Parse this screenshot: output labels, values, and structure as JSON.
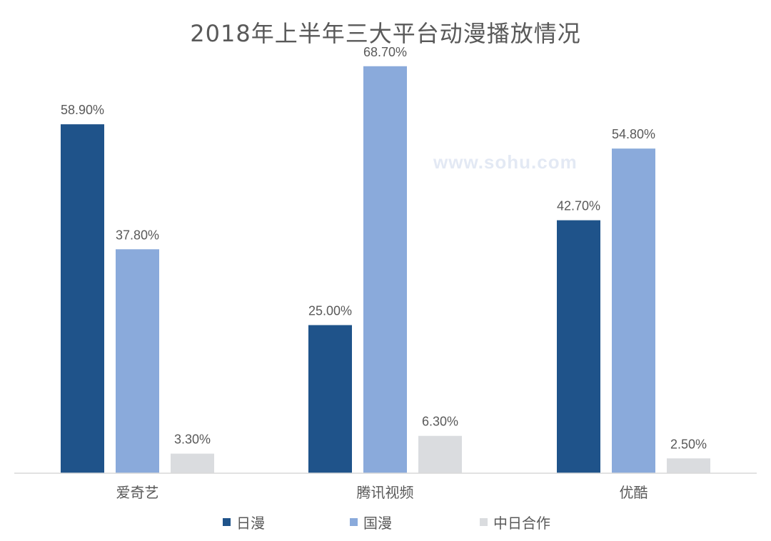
{
  "chart_data": {
    "type": "bar",
    "title": "2018年上半年三大平台动漫播放情况",
    "categories": [
      "爱奇艺",
      "腾讯视频",
      "优酷"
    ],
    "series": [
      {
        "name": "日漫",
        "values": [
          58.9,
          25.0,
          42.7
        ],
        "labels": [
          "58.90%",
          "25.00%",
          "42.70%"
        ],
        "color": "#1f538a"
      },
      {
        "name": "国漫",
        "values": [
          37.8,
          68.7,
          54.8
        ],
        "labels": [
          "37.80%",
          "68.70%",
          "54.80%"
        ],
        "color": "#8aaadb"
      },
      {
        "name": "中日合作",
        "values": [
          3.3,
          6.3,
          2.5
        ],
        "labels": [
          "3.30%",
          "6.30%",
          "2.50%"
        ],
        "color": "#dadcdf"
      }
    ],
    "ylim": [
      0,
      80
    ],
    "grid": false,
    "legend_position": "bottom",
    "watermark": "www.sohu.com"
  }
}
